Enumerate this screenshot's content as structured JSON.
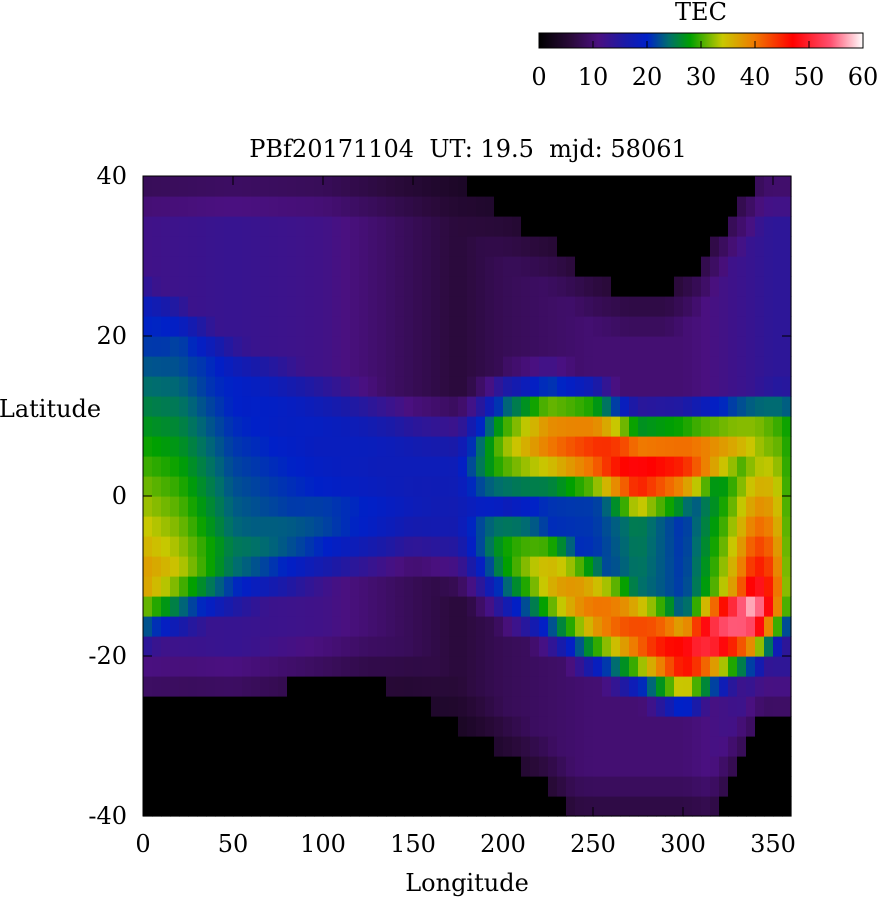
{
  "chart_data": {
    "type": "heatmap",
    "title": "PBf20171104  UT: 19.5  mjd: 58061",
    "xlabel": "Longitude",
    "ylabel": "Latitude",
    "xlim": [
      0,
      360
    ],
    "ylim": [
      -40,
      40
    ],
    "xticks": [
      0,
      50,
      100,
      150,
      200,
      250,
      300,
      350
    ],
    "yticks": [
      -40,
      -20,
      0,
      20,
      40
    ],
    "grid": false,
    "colorbar": {
      "label": "TEC",
      "range": [
        0,
        60
      ],
      "ticks": [
        0,
        10,
        20,
        30,
        40,
        50,
        60
      ],
      "placement": "top-right",
      "stops": [
        {
          "v": 0,
          "color": "#000000"
        },
        {
          "v": 6,
          "color": "#2a0a3a"
        },
        {
          "v": 11,
          "color": "#4a1080"
        },
        {
          "v": 16,
          "color": "#1a1aa8"
        },
        {
          "v": 20,
          "color": "#0020c8"
        },
        {
          "v": 24,
          "color": "#006e6e"
        },
        {
          "v": 28,
          "color": "#00a000"
        },
        {
          "v": 34,
          "color": "#c8c800"
        },
        {
          "v": 40,
          "color": "#f07800"
        },
        {
          "v": 47,
          "color": "#ff0000"
        },
        {
          "v": 54,
          "color": "#ff5070"
        },
        {
          "v": 60,
          "color": "#ffffff"
        }
      ]
    },
    "grid_spacing": {
      "longitude": 5,
      "latitude": 2.5
    },
    "features": {
      "crest_north": [
        [
          0,
          21
        ],
        [
          25,
          17
        ],
        [
          50,
          13
        ],
        [
          100,
          8
        ],
        [
          150,
          4
        ],
        [
          175,
          3
        ],
        [
          200,
          6
        ],
        [
          225,
          7
        ],
        [
          250,
          6
        ],
        [
          275,
          3
        ],
        [
          300,
          4
        ],
        [
          325,
          6
        ],
        [
          355,
          8
        ]
      ],
      "crest_south": [
        [
          0,
          -10
        ],
        [
          25,
          -8
        ],
        [
          50,
          -7
        ],
        [
          100,
          -3
        ],
        [
          150,
          -1
        ],
        [
          175,
          -3
        ],
        [
          200,
          -7
        ],
        [
          225,
          -10
        ],
        [
          250,
          -14
        ],
        [
          275,
          -17
        ],
        [
          300,
          -20
        ],
        [
          325,
          -16
        ],
        [
          355,
          -12
        ]
      ],
      "peak_tec_north": [
        [
          0,
          20
        ],
        [
          20,
          22
        ],
        [
          50,
          20
        ],
        [
          100,
          19
        ],
        [
          150,
          18
        ],
        [
          175,
          18
        ],
        [
          200,
          32
        ],
        [
          225,
          40
        ],
        [
          250,
          44
        ],
        [
          275,
          48
        ],
        [
          300,
          45
        ],
        [
          320,
          38
        ],
        [
          340,
          34
        ],
        [
          360,
          28
        ]
      ],
      "peak_tec_south": [
        [
          0,
          38
        ],
        [
          20,
          34
        ],
        [
          50,
          25
        ],
        [
          100,
          22
        ],
        [
          150,
          18
        ],
        [
          175,
          17
        ],
        [
          200,
          28
        ],
        [
          225,
          36
        ],
        [
          250,
          40
        ],
        [
          275,
          43
        ],
        [
          300,
          48
        ],
        [
          325,
          54
        ],
        [
          340,
          58
        ],
        [
          350,
          45
        ],
        [
          360,
          28
        ]
      ],
      "crest_width": [
        [
          0,
          9
        ],
        [
          50,
          10
        ],
        [
          100,
          11
        ],
        [
          150,
          10
        ],
        [
          200,
          9
        ],
        [
          250,
          8
        ],
        [
          300,
          7
        ],
        [
          350,
          7
        ],
        [
          360,
          7
        ]
      ],
      "background_tec": [
        [
          0,
          12
        ],
        [
          50,
          13
        ],
        [
          100,
          12
        ],
        [
          150,
          8
        ],
        [
          175,
          6
        ],
        [
          200,
          8
        ],
        [
          250,
          10
        ],
        [
          300,
          10
        ],
        [
          350,
          14
        ],
        [
          360,
          14
        ]
      ],
      "equator_tec_scale": [
        [
          0,
          1.0
        ],
        [
          50,
          0.98
        ],
        [
          100,
          0.95
        ],
        [
          150,
          0.98
        ],
        [
          175,
          1.0
        ],
        [
          200,
          0.6
        ],
        [
          250,
          0.5
        ],
        [
          275,
          0.55
        ],
        [
          300,
          0.45
        ],
        [
          325,
          0.7
        ],
        [
          350,
          1.0
        ],
        [
          360,
          1.0
        ]
      ],
      "coverage_north": [
        [
          0,
          40
        ],
        [
          150,
          40
        ],
        [
          175,
          40
        ],
        [
          190,
          37
        ],
        [
          210,
          34
        ],
        [
          230,
          31
        ],
        [
          250,
          27
        ],
        [
          270,
          25
        ],
        [
          290,
          25
        ],
        [
          310,
          29
        ],
        [
          325,
          34
        ],
        [
          345,
          40
        ],
        [
          360,
          40
        ]
      ],
      "coverage_south": [
        [
          0,
          -26
        ],
        [
          25,
          -25
        ],
        [
          50,
          -25
        ],
        [
          75,
          -24
        ],
        [
          100,
          -23
        ],
        [
          125,
          -23
        ],
        [
          150,
          -25
        ],
        [
          175,
          -29
        ],
        [
          200,
          -32
        ],
        [
          225,
          -36
        ],
        [
          240,
          -40
        ],
        [
          315,
          -40
        ],
        [
          330,
          -33
        ],
        [
          345,
          -27
        ],
        [
          360,
          -27
        ]
      ]
    }
  }
}
